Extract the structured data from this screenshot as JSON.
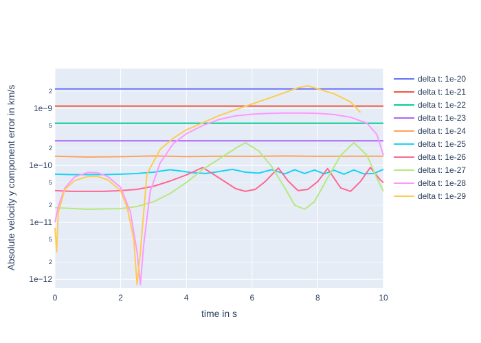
{
  "chart_data": {
    "type": "line",
    "xlabel": "time in s",
    "ylabel": "Absolute velocity y component error in km/s",
    "xlim": [
      0,
      10
    ],
    "ylim": [
      7e-13,
      5e-09
    ],
    "yscale": "log",
    "grid": true,
    "legend_placement": "right",
    "x_ticks": [
      {
        "value": 0,
        "label": "0"
      },
      {
        "value": 2,
        "label": "2"
      },
      {
        "value": 4,
        "label": "4"
      },
      {
        "value": 6,
        "label": "6"
      },
      {
        "value": 8,
        "label": "8"
      },
      {
        "value": 10,
        "label": "10"
      }
    ],
    "y_major_ticks": [
      {
        "value": 1e-12,
        "label": "1e−12"
      },
      {
        "value": 1e-11,
        "label": "1e−11"
      },
      {
        "value": 1e-10,
        "label": "1e−10"
      },
      {
        "value": 1e-09,
        "label": "1e−9"
      }
    ],
    "y_minor_ticks": [
      {
        "value": 2e-12,
        "label": "2"
      },
      {
        "value": 5e-12,
        "label": "5"
      },
      {
        "value": 2e-11,
        "label": "2"
      },
      {
        "value": 5e-11,
        "label": "5"
      },
      {
        "value": 2e-10,
        "label": "2"
      },
      {
        "value": 5e-10,
        "label": "5"
      },
      {
        "value": 2e-09,
        "label": "2"
      }
    ],
    "series": [
      {
        "name": "delta t: 1e-20",
        "color": "#636efa",
        "x": [
          0,
          10
        ],
        "y": [
          2.2e-09,
          2.2e-09
        ]
      },
      {
        "name": "delta t: 1e-21",
        "color": "#ef553b",
        "x": [
          0,
          10
        ],
        "y": [
          1.1e-09,
          1.1e-09
        ]
      },
      {
        "name": "delta t: 1e-22",
        "color": "#00cc96",
        "x": [
          0,
          10
        ],
        "y": [
          5.5e-10,
          5.5e-10
        ]
      },
      {
        "name": "delta t: 1e-23",
        "color": "#ab63fa",
        "x": [
          0,
          10
        ],
        "y": [
          2.7e-10,
          2.7e-10
        ]
      },
      {
        "name": "delta t: 1e-24",
        "color": "#ffa15a",
        "x": [
          0,
          1,
          2,
          3,
          4,
          5,
          6,
          7,
          8,
          9,
          10
        ],
        "y": [
          1.45e-10,
          1.4e-10,
          1.42e-10,
          1.46e-10,
          1.43e-10,
          1.45e-10,
          1.44e-10,
          1.46e-10,
          1.44e-10,
          1.45e-10,
          1.45e-10
        ]
      },
      {
        "name": "delta t: 1e-25",
        "color": "#19d3f3",
        "x": [
          0,
          0.5,
          1,
          1.5,
          2,
          2.5,
          3,
          3.5,
          3.8,
          4.2,
          4.6,
          5,
          5.4,
          5.8,
          6.2,
          6.6,
          7,
          7.3,
          7.6,
          7.9,
          8.2,
          8.5,
          8.8,
          9.1,
          9.4,
          9.7,
          10
        ],
        "y": [
          7e-11,
          6.9e-11,
          6.9e-11,
          6.9e-11,
          7e-11,
          7.2e-11,
          7.6e-11,
          8.4e-11,
          8e-11,
          7.4e-11,
          7.2e-11,
          7.8e-11,
          8.5e-11,
          7.6e-11,
          7.3e-11,
          8.4e-11,
          7.1e-11,
          8.4e-11,
          7.2e-11,
          8.3e-11,
          7.1e-11,
          8.2e-11,
          7e-11,
          8.3e-11,
          7.1e-11,
          7.2e-11,
          8.5e-11
        ]
      },
      {
        "name": "delta t: 1e-26",
        "color": "#ff6692",
        "x": [
          0,
          0.5,
          1,
          1.5,
          2,
          2.5,
          3,
          3.5,
          4,
          4.5,
          5,
          5.5,
          5.8,
          6.1,
          6.4,
          6.8,
          7.1,
          7.4,
          7.7,
          8,
          8.3,
          8.7,
          9,
          9.3,
          9.6,
          9.9,
          10
        ],
        "y": [
          3.6e-11,
          3.5e-11,
          3.5e-11,
          3.5e-11,
          3.6e-11,
          3.8e-11,
          4.3e-11,
          5.3e-11,
          6.8e-11,
          9.2e-11,
          6e-11,
          3.9e-11,
          3.5e-11,
          3.8e-11,
          5.2e-11,
          9e-11,
          5.3e-11,
          3.6e-11,
          3.8e-11,
          5.2e-11,
          8.8e-11,
          4e-11,
          3.5e-11,
          5.2e-11,
          9.2e-11,
          5.6e-11,
          5e-11
        ]
      },
      {
        "name": "delta t: 1e-27",
        "color": "#b6e880",
        "x": [
          0,
          0.5,
          1,
          1.5,
          2,
          2.5,
          3,
          3.5,
          4,
          4.5,
          5,
          5.5,
          5.8,
          6.2,
          6.6,
          7,
          7.3,
          7.6,
          7.9,
          8.3,
          8.7,
          9.1,
          9.5,
          9.8,
          10
        ],
        "y": [
          1.8e-11,
          1.75e-11,
          1.7e-11,
          1.72e-11,
          1.74e-11,
          1.9e-11,
          2.3e-11,
          3.2e-11,
          5e-11,
          8.5e-11,
          1.3e-10,
          2e-10,
          2.5e-10,
          1.8e-10,
          9.5e-11,
          4e-11,
          2e-11,
          1.7e-11,
          2.3e-11,
          6e-11,
          1.5e-10,
          2.5e-10,
          1.5e-10,
          6e-11,
          3.5e-11
        ]
      },
      {
        "name": "delta t: 1e-28",
        "color": "#ff97ff",
        "x": [
          0,
          0.1,
          0.3,
          0.6,
          1,
          1.3,
          1.6,
          2,
          2.3,
          2.5,
          2.6,
          2.7,
          2.9,
          3.2,
          3.6,
          4,
          4.5,
          5,
          5.5,
          6,
          6.5,
          7,
          7.5,
          8,
          8.5,
          9,
          9.5,
          9.8,
          10
        ],
        "y": [
          1e-11,
          1.9e-11,
          4e-11,
          6.3e-11,
          7.5e-11,
          7.4e-11,
          6.4e-11,
          4.1e-11,
          1.5e-11,
          3e-12,
          8e-13,
          4e-12,
          3.5e-11,
          1.1e-10,
          2.4e-10,
          3.6e-10,
          5e-10,
          6.4e-10,
          7.4e-10,
          7.9e-10,
          8.2e-10,
          8.3e-10,
          8.3e-10,
          8.2e-10,
          7.8e-10,
          7e-10,
          5.5e-10,
          3.5e-10,
          1.5e-10
        ]
      },
      {
        "name": "delta t: 1e-29",
        "color": "#fecb52",
        "x": [
          0,
          0.05,
          0.1,
          0.3,
          0.6,
          1,
          1.3,
          1.6,
          2,
          2.2,
          2.4,
          2.5,
          2.6,
          2.8,
          3.2,
          3.6,
          4,
          4.5,
          5,
          5.5,
          6,
          6.5,
          7,
          7.4,
          7.7,
          8,
          8.5,
          9,
          9.3
        ],
        "y": [
          8e-12,
          3e-12,
          1.5e-11,
          3.8e-11,
          5.4e-11,
          6.4e-11,
          6.4e-11,
          5.6e-11,
          3.6e-11,
          1.8e-11,
          5e-12,
          8e-13,
          3e-12,
          7e-11,
          1.9e-10,
          3e-10,
          4.2e-10,
          5.6e-10,
          7.5e-10,
          9.5e-10,
          1.2e-09,
          1.5e-09,
          1.9e-09,
          2.3e-09,
          2.5e-09,
          2.2e-09,
          1.8e-09,
          1.3e-09,
          8.5e-10
        ]
      }
    ]
  }
}
